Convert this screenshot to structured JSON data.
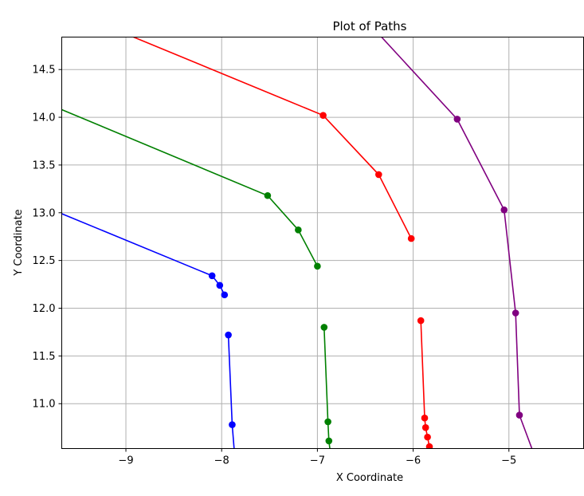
{
  "chart_data": {
    "type": "line",
    "title": "Plot of Paths",
    "xlabel": "X Coordinate",
    "ylabel": "Y Coordinate",
    "xlim": [
      -9.67,
      -4.22
    ],
    "ylim": [
      10.53,
      14.84
    ],
    "grid": true,
    "xticks": [
      -9,
      -8,
      -7,
      -6,
      -5
    ],
    "xtick_labels": [
      "−9",
      "−8",
      "−7",
      "−6",
      "−5"
    ],
    "yticks": [
      11.0,
      11.5,
      12.0,
      12.5,
      13.0,
      13.5,
      14.0,
      14.5
    ],
    "ytick_labels": [
      "11.0",
      "11.5",
      "12.0",
      "12.5",
      "13.0",
      "13.5",
      "14.0",
      "14.5"
    ],
    "series": [
      {
        "color": "#0000ff",
        "segments": [
          {
            "points": [
              [
                -9.67,
                12.99
              ],
              [
                -8.1,
                12.34
              ],
              [
                -8.02,
                12.24
              ],
              [
                -7.97,
                12.14
              ]
            ],
            "markers": [
              [
                -8.1,
                12.34
              ],
              [
                -8.02,
                12.24
              ],
              [
                -7.97,
                12.14
              ]
            ]
          },
          {
            "points": [
              [
                -7.93,
                11.72
              ],
              [
                -7.89,
                10.78
              ],
              [
                -7.87,
                10.53
              ]
            ],
            "markers": [
              [
                -7.93,
                11.72
              ],
              [
                -7.89,
                10.78
              ]
            ]
          }
        ]
      },
      {
        "color": "#008000",
        "segments": [
          {
            "points": [
              [
                -9.67,
                14.08
              ],
              [
                -7.52,
                13.18
              ],
              [
                -7.2,
                12.82
              ],
              [
                -7.0,
                12.44
              ]
            ],
            "markers": [
              [
                -7.52,
                13.18
              ],
              [
                -7.2,
                12.82
              ],
              [
                -7.0,
                12.44
              ]
            ]
          },
          {
            "points": [
              [
                -6.93,
                11.8
              ],
              [
                -6.89,
                10.81
              ],
              [
                -6.88,
                10.61
              ],
              [
                -6.87,
                10.53
              ]
            ],
            "markers": [
              [
                -6.93,
                11.8
              ],
              [
                -6.89,
                10.81
              ],
              [
                -6.88,
                10.61
              ]
            ]
          }
        ]
      },
      {
        "color": "#ff0000",
        "segments": [
          {
            "points": [
              [
                -8.92,
                14.84
              ],
              [
                -6.94,
                14.02
              ],
              [
                -6.36,
                13.4
              ],
              [
                -6.02,
                12.73
              ]
            ],
            "markers": [
              [
                -6.94,
                14.02
              ],
              [
                -6.36,
                13.4
              ],
              [
                -6.02,
                12.73
              ]
            ]
          },
          {
            "points": [
              [
                -5.92,
                11.87
              ],
              [
                -5.88,
                10.85
              ],
              [
                -5.87,
                10.75
              ],
              [
                -5.85,
                10.65
              ],
              [
                -5.83,
                10.55
              ]
            ],
            "markers": [
              [
                -5.92,
                11.87
              ],
              [
                -5.88,
                10.85
              ],
              [
                -5.87,
                10.75
              ],
              [
                -5.85,
                10.65
              ],
              [
                -5.83,
                10.55
              ]
            ]
          }
        ]
      },
      {
        "color": "#800080",
        "segments": [
          {
            "points": [
              [
                -6.33,
                14.84
              ],
              [
                -5.54,
                13.98
              ],
              [
                -5.05,
                13.03
              ],
              [
                -4.93,
                11.95
              ],
              [
                -4.89,
                10.88
              ],
              [
                -4.76,
                10.53
              ]
            ],
            "markers": [
              [
                -5.54,
                13.98
              ],
              [
                -5.05,
                13.03
              ],
              [
                -4.93,
                11.95
              ],
              [
                -4.89,
                10.88
              ]
            ]
          }
        ]
      }
    ]
  }
}
